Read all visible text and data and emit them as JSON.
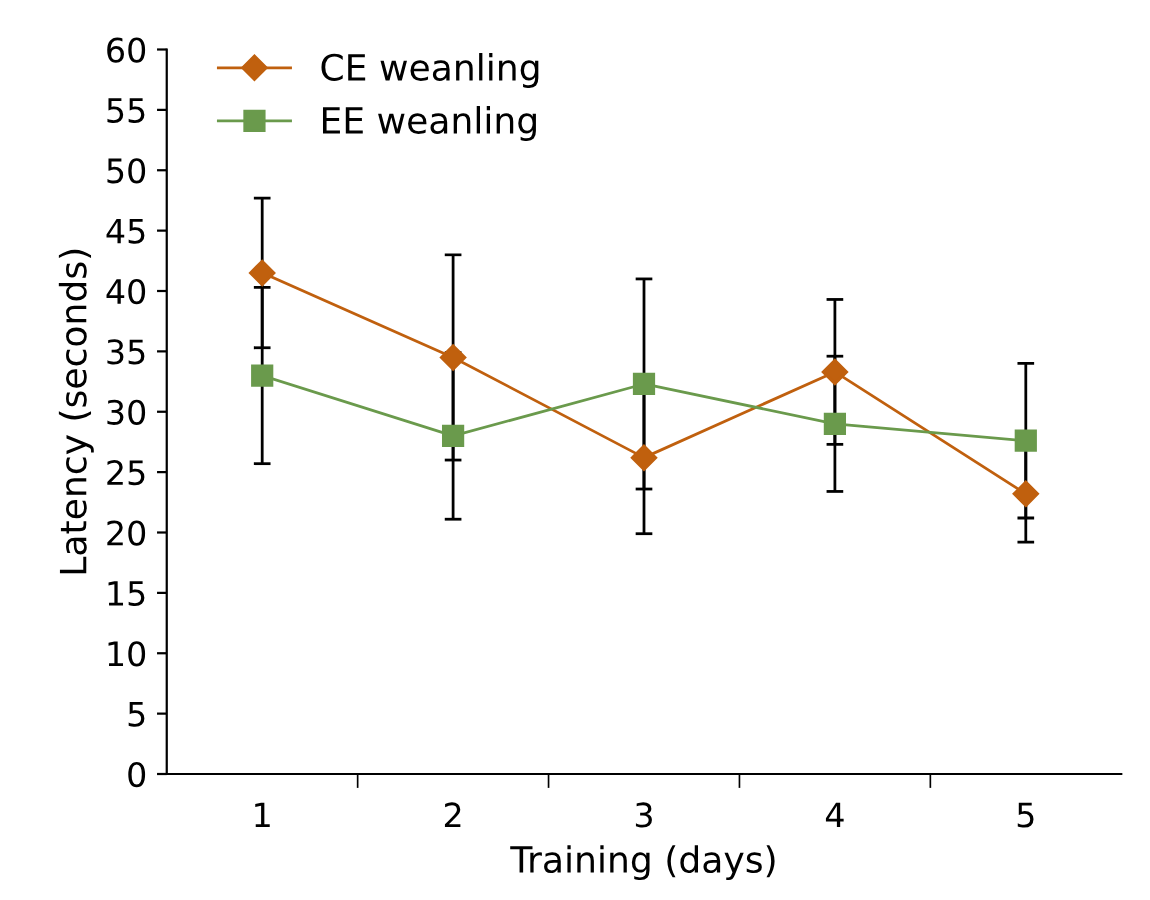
{
  "chart_data": {
    "type": "line",
    "xlabel": "Training (days)",
    "ylabel": "Latency (seconds)",
    "categories": [
      "1",
      "2",
      "3",
      "4",
      "5"
    ],
    "series": [
      {
        "name": "CE weanling",
        "color": "#c0600e",
        "marker": "diamond",
        "values": [
          41.5,
          34.5,
          26.2,
          33.3,
          23.2
        ],
        "errors": [
          6.2,
          8.5,
          6.3,
          6.0,
          4.0
        ]
      },
      {
        "name": "EE weanling",
        "color": "#6a9a4c",
        "marker": "square",
        "values": [
          33.0,
          28.0,
          32.3,
          29.0,
          27.6
        ],
        "errors": [
          7.3,
          6.9,
          8.7,
          5.6,
          6.4
        ]
      }
    ],
    "ylim": [
      0,
      60
    ],
    "yticks": [
      0,
      5,
      10,
      15,
      20,
      25,
      30,
      35,
      40,
      45,
      50,
      55,
      60
    ],
    "grid": false,
    "legend": "top left",
    "line_style": "solid"
  }
}
